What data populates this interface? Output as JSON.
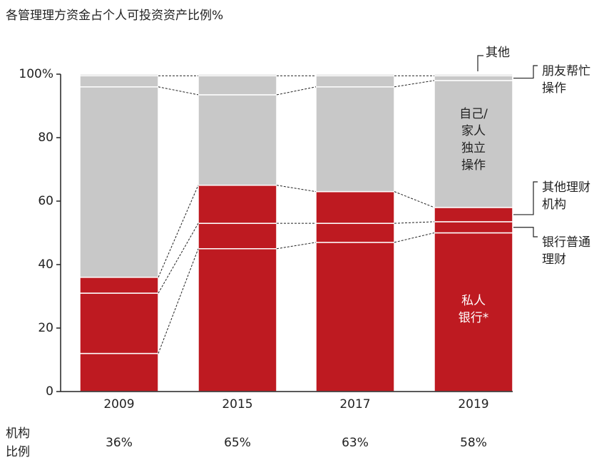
{
  "chart_data": {
    "type": "stacked_bar",
    "title": "各管理理方资金占个人可投资资产比例%",
    "categories": [
      "2009",
      "2015",
      "2017",
      "2019"
    ],
    "ylim": [
      0,
      100
    ],
    "yticks": [
      0,
      20,
      40,
      60,
      80,
      {
        "value": 100,
        "label": "100%"
      }
    ],
    "series": [
      {
        "name": [
          "私人",
          "银行*"
        ],
        "color": "#be1a21",
        "values": [
          12,
          45,
          47,
          50
        ]
      },
      {
        "name": [
          "银行普通",
          "理财"
        ],
        "color": "#be1a21",
        "values": [
          19,
          8,
          6,
          3.5
        ]
      },
      {
        "name": [
          "其他理财",
          "机构"
        ],
        "color": "#be1a21",
        "values": [
          5,
          12,
          10,
          4.5
        ]
      },
      {
        "name": [
          "自己/",
          "家人",
          "独立",
          "操作"
        ],
        "color": "#c8c8c8",
        "values": [
          60,
          28.5,
          33,
          40
        ]
      },
      {
        "name": [
          "朋友帮忙",
          "操作"
        ],
        "color": "#c8c8c8",
        "values": [
          3.5,
          6,
          3.5,
          1.5
        ]
      },
      {
        "name": [
          "其他"
        ],
        "color": "#c8c8c8",
        "values": [
          0.5,
          0.5,
          0.5,
          0.5
        ]
      }
    ],
    "institution_ratio": {
      "label": [
        "机构",
        "比例"
      ],
      "values": [
        36,
        65,
        63,
        58
      ],
      "value_labels": [
        "36%",
        "65%",
        "63%",
        "58%"
      ]
    }
  }
}
